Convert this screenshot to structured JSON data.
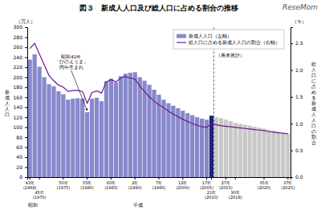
{
  "chart_data": {
    "type": "bar",
    "title": "図３　新成人人口及び総人口に占める割合の推移",
    "ylabel": "新\n成\n人\n人\n口",
    "y2label": "総\n人\n口\nに\n占\nめ\nる\n新\n成\n人\n人\n口\nの\n割\n合",
    "categories": [
      "43年\n(1968)",
      null,
      "45年\n(1970)",
      null,
      null,
      null,
      null,
      "50年\n(1975)",
      null,
      null,
      null,
      null,
      "55年\n(1980)",
      null,
      null,
      null,
      null,
      "60年\n(1985)",
      null,
      null,
      null,
      null,
      "2年\n(1990)",
      null,
      null,
      null,
      null,
      "7年\n(1995)",
      null,
      null,
      null,
      null,
      "12年\n(2000)",
      null,
      null,
      null,
      null,
      "17年\n(2005)",
      "21年\n(2010)",
      null,
      null,
      "27年\n(2015)",
      null,
      "30年\n(2018)",
      null,
      null,
      null,
      null,
      null,
      "35年\n(2020)",
      null,
      null,
      null,
      null,
      "37年\n(2025)"
    ],
    "series": [
      {
        "name": "新成人人口（左軸）",
        "type": "bar",
        "color": "#8888CC",
        "colors": [
          "#8888CC",
          "#8888CC",
          "#8888CC",
          "#8888CC",
          "#8888CC",
          "#8888CC",
          "#8888CC",
          "#8888CC",
          "#8888CC",
          "#8888CC",
          "#8888CC",
          "#8888CC",
          "#8888CC",
          "#8888CC",
          "#8888CC",
          "#8888CC",
          "#8888CC",
          "#8888CC",
          "#8888CC",
          "#8888CC",
          "#8888CC",
          "#8888CC",
          "#8888CC",
          "#8888CC",
          "#8888CC",
          "#8888CC",
          "#8888CC",
          "#8888CC",
          "#8888CC",
          "#8888CC",
          "#8888CC",
          "#8888CC",
          "#8888CC",
          "#8888CC",
          "#8888CC",
          "#8888CC",
          "#8888CC",
          "#8888CC",
          "#1A237E",
          "#C8C8C8",
          "#C8C8C8",
          "#C8C8C8",
          "#C8C8C8",
          "#C8C8C8",
          "#C8C8C8",
          "#C8C8C8",
          "#C8C8C8",
          "#C8C8C8",
          "#C8C8C8",
          "#C8C8C8",
          "#C8C8C8",
          "#C8C8C8",
          "#C8C8C8",
          "#C8C8C8",
          "#C8C8C8"
        ],
        "values": [
          235,
          246,
          221,
          200,
          186,
          182,
          172,
          166,
          155,
          157,
          158,
          157,
          130,
          157,
          159,
          152,
          192,
          197,
          190,
          202,
          207,
          209,
          210,
          200,
          193,
          185,
          175,
          165,
          155,
          148,
          143,
          138,
          133,
          128,
          124,
          120,
          117,
          115,
          123,
          120,
          118,
          115,
          112,
          109,
          107,
          105,
          103,
          101,
          99,
          97,
          95,
          93,
          91,
          89,
          87
        ]
      },
      {
        "name": "総人口に占める新成人人口の割合（右軸）",
        "type": "line",
        "color": "#6A1A8A",
        "axis": "y2",
        "values": [
          2.4,
          2.5,
          2.3,
          2.1,
          1.9,
          1.8,
          1.72,
          1.68,
          1.6,
          1.62,
          1.62,
          1.6,
          1.38,
          1.58,
          1.61,
          1.57,
          1.78,
          1.82,
          1.78,
          1.85,
          1.88,
          1.85,
          1.83,
          1.7,
          1.6,
          1.5,
          1.42,
          1.35,
          1.3,
          1.23,
          1.18,
          1.13,
          1.08,
          1.04,
          1.0,
          0.97,
          0.94,
          0.93,
          1.0,
          0.98,
          0.96,
          0.95,
          0.94,
          0.93,
          0.92,
          0.91,
          0.9,
          0.89,
          0.88,
          0.87,
          0.85,
          0.84,
          0.83,
          0.82,
          0.81
        ]
      }
    ],
    "ylim": [
      0,
      300
    ],
    "yticks": [
      0,
      20,
      40,
      60,
      80,
      100,
      120,
      140,
      160,
      180,
      200,
      220,
      240,
      260,
      280,
      300
    ],
    "y2lim": [
      0.0,
      2.8
    ],
    "y2ticks": [
      {
        "value": 0.0,
        "label": "0.0"
      },
      0.5,
      {
        "value": 1.0,
        "label": "1.0"
      },
      1.5,
      {
        "value": 2.0,
        "label": "2.0"
      },
      2.5
    ],
    "annotations": [
      {
        "text": "昭和41年\n「ひのえうま」\n丙午生まれ",
        "x": 12
      },
      {
        "text": "（将来推計）",
        "x": 39
      },
      {
        "text": "昭和",
        "x": 0
      },
      {
        "text": "平成",
        "x": 22
      },
      {
        "text": "（万人）"
      },
      {
        "text": "（％）"
      },
      {
        "text": "ReseMom"
      }
    ],
    "legend": "upper right",
    "grid": false
  }
}
